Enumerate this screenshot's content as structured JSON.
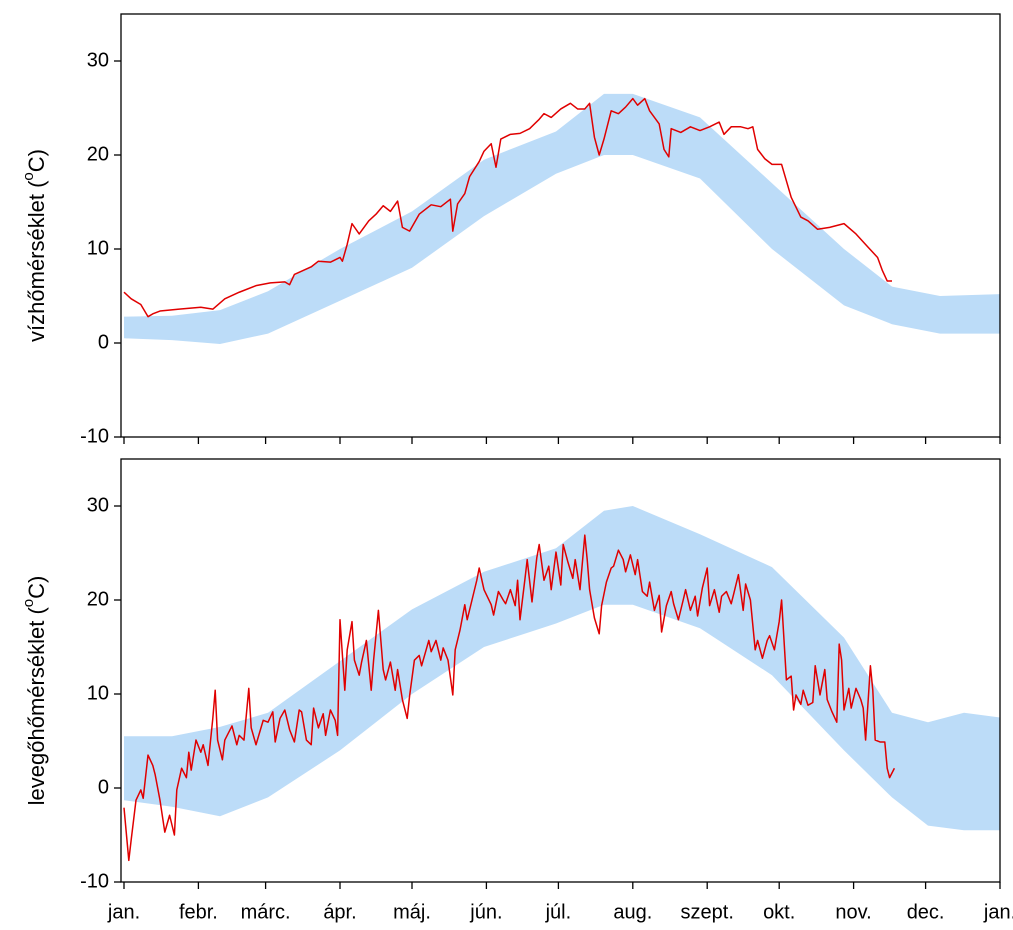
{
  "chart_data": [
    {
      "type": "band-line",
      "ylabel": {
        "text": "vízhőmérséklet (",
        "sup": "o",
        "end": "C)"
      },
      "xlim": [
        0,
        365
      ],
      "ylim": [
        -10,
        35
      ],
      "yticks": [
        -10,
        0,
        10,
        20,
        30
      ],
      "xticks": [
        0,
        31,
        59,
        90,
        120,
        151,
        181,
        212,
        243,
        273,
        304,
        334,
        365
      ],
      "band": {
        "color": "#bcdcf8",
        "x": [
          0,
          20,
          40,
          60,
          90,
          120,
          150,
          180,
          200,
          212,
          240,
          270,
          300,
          320,
          340,
          365
        ],
        "upper": [
          2.8,
          2.9,
          3.5,
          5.5,
          10,
          14,
          19.5,
          22.5,
          26.5,
          26.5,
          24,
          17,
          10,
          6,
          5,
          5.2
        ],
        "lower": [
          0.5,
          0.3,
          -0.1,
          1,
          4.5,
          8,
          13.5,
          18,
          20,
          20,
          17.5,
          10,
          4,
          2,
          1,
          1
        ]
      },
      "line": {
        "color": "#e00000",
        "x": [
          0,
          3,
          7,
          10,
          12,
          15,
          23,
          32,
          37,
          42,
          48,
          55,
          61,
          67,
          69,
          71,
          78,
          81,
          86,
          90,
          91,
          93,
          95,
          98,
          102,
          105,
          108,
          111,
          114,
          116,
          119,
          123,
          128,
          132,
          136,
          137,
          139,
          142,
          144,
          148,
          150,
          153,
          155,
          157,
          161,
          165,
          169,
          173,
          175,
          178,
          182,
          186,
          189,
          192,
          194,
          196,
          198,
          200,
          203,
          206,
          209,
          212,
          214,
          217,
          219,
          223,
          225,
          227,
          228,
          232,
          236,
          240,
          244,
          248,
          250,
          253,
          257,
          260,
          262,
          264,
          267,
          270,
          274,
          278,
          282,
          285,
          289,
          294,
          300,
          305,
          310,
          314,
          316,
          318,
          320
        ],
        "values": [
          5.4,
          4.7,
          4.1,
          2.8,
          3.1,
          3.4,
          3.6,
          3.8,
          3.6,
          4.7,
          5.4,
          6.1,
          6.4,
          6.5,
          6.2,
          7.3,
          8.1,
          8.7,
          8.6,
          9.1,
          8.7,
          10.5,
          12.7,
          11.6,
          13,
          13.7,
          14.6,
          14,
          15.1,
          12.3,
          11.9,
          13.7,
          14.7,
          14.5,
          15.3,
          11.9,
          14.8,
          15.9,
          17.7,
          19.3,
          20.4,
          21.2,
          18.7,
          21.7,
          22.2,
          22.3,
          22.8,
          23.8,
          24.4,
          24,
          24.9,
          25.5,
          24.9,
          24.9,
          25.5,
          21.9,
          20,
          21.7,
          24.7,
          24.4,
          25.1,
          26,
          25.3,
          26,
          24.7,
          23.3,
          20.6,
          19.8,
          22.8,
          22.4,
          23,
          22.6,
          23,
          23.5,
          22.2,
          23,
          23,
          22.8,
          23,
          20.6,
          19.6,
          19,
          19,
          15.5,
          13.4,
          13,
          12.1,
          12.3,
          12.7,
          11.6,
          10.2,
          9.1,
          7.7,
          6.6,
          6.6
        ]
      }
    },
    {
      "type": "band-line",
      "ylabel": {
        "text": "levegőhőmérséklet (",
        "sup": "o",
        "end": "C)"
      },
      "xlim": [
        0,
        365
      ],
      "ylim": [
        -10,
        35
      ],
      "yticks": [
        -10,
        0,
        10,
        20,
        30
      ],
      "xticks": [
        {
          "value": 0,
          "label": "jan."
        },
        {
          "value": 31,
          "label": "febr."
        },
        {
          "value": 59,
          "label": "márc."
        },
        {
          "value": 90,
          "label": "ápr."
        },
        {
          "value": 120,
          "label": "máj."
        },
        {
          "value": 151,
          "label": "jún."
        },
        {
          "value": 181,
          "label": "júl."
        },
        {
          "value": 212,
          "label": "aug."
        },
        {
          "value": 243,
          "label": "szept."
        },
        {
          "value": 273,
          "label": "okt."
        },
        {
          "value": 304,
          "label": "nov."
        },
        {
          "value": 334,
          "label": "dec."
        },
        {
          "value": 365,
          "label": "jan."
        }
      ],
      "band": {
        "color": "#bcdcf8",
        "x": [
          0,
          20,
          40,
          60,
          90,
          120,
          150,
          180,
          200,
          212,
          240,
          270,
          300,
          320,
          335,
          350,
          365
        ],
        "upper": [
          5.5,
          5.5,
          6.5,
          8,
          13.5,
          19,
          23,
          25.5,
          29.5,
          30,
          27,
          23.5,
          16,
          8,
          7,
          8,
          7.5
        ],
        "lower": [
          -1.3,
          -2,
          -3,
          -1,
          4,
          10,
          15,
          17.5,
          19.5,
          19.5,
          17,
          12,
          4,
          -1,
          -4,
          -4.5,
          -4.5
        ]
      },
      "line": {
        "color": "#e00000",
        "x": [
          0,
          2,
          3,
          5,
          7,
          8,
          10,
          12,
          13,
          15,
          17,
          19,
          21,
          22,
          24,
          26,
          27,
          28,
          30,
          32,
          33,
          35,
          37,
          38,
          39,
          41,
          42,
          45,
          47,
          48,
          50,
          52,
          53,
          55,
          58,
          60,
          62,
          63,
          65,
          67,
          69,
          71,
          73,
          74,
          76,
          78,
          79,
          81,
          83,
          84,
          86,
          88,
          89,
          90,
          92,
          93,
          95,
          96,
          98,
          99,
          101,
          103,
          104,
          106,
          108,
          109,
          111,
          113,
          114,
          116,
          118,
          119,
          121,
          123,
          124,
          127,
          128,
          130,
          132,
          133,
          135,
          137,
          138,
          140,
          142,
          143,
          145,
          147,
          148,
          150,
          153,
          154,
          156,
          158,
          159,
          161,
          163,
          164,
          165,
          167,
          168,
          170,
          172,
          173,
          175,
          177,
          178,
          180,
          182,
          183,
          185,
          187,
          188,
          190,
          192,
          193,
          194,
          196,
          198,
          199,
          201,
          203,
          204,
          206,
          208,
          209,
          211,
          213,
          214,
          216,
          218,
          219,
          221,
          223,
          224,
          226,
          228,
          229,
          231,
          233,
          234,
          236,
          238,
          239,
          241,
          243,
          244,
          246,
          248,
          249,
          251,
          253,
          254,
          256,
          258,
          259,
          261,
          263,
          264,
          266,
          268,
          269,
          271,
          273,
          274,
          276,
          278,
          279,
          280,
          282,
          283,
          285,
          287,
          288,
          290,
          292,
          293,
          295,
          297,
          298,
          299,
          300,
          302,
          303,
          305,
          307,
          308,
          309,
          311,
          312,
          313,
          315,
          317,
          318,
          319,
          321
        ],
        "values": [
          -2.1,
          -7.7,
          -5.5,
          -1.3,
          -0.2,
          -1.1,
          3.5,
          2.4,
          1.4,
          -1.3,
          -4.7,
          -2.9,
          -5,
          -0.2,
          2.1,
          1.1,
          3.8,
          1.9,
          5.1,
          3.8,
          4.6,
          2.4,
          7.4,
          10.4,
          5.1,
          3,
          5.1,
          6.6,
          4.6,
          5.6,
          5.1,
          10.6,
          6.4,
          4.6,
          7.2,
          7,
          8.1,
          4.9,
          7.4,
          8.3,
          6.2,
          4.9,
          8.3,
          8.1,
          5.1,
          4.6,
          8.5,
          6.4,
          7.9,
          5.6,
          8.3,
          7.2,
          5.6,
          17.9,
          10.4,
          14.7,
          17.7,
          13.6,
          12,
          13.4,
          15.7,
          10.4,
          13.6,
          18.9,
          12.6,
          11.5,
          13.4,
          10.4,
          12.6,
          9.4,
          7.4,
          9.8,
          13.6,
          14.1,
          13,
          15.7,
          14.5,
          15.7,
          13.6,
          14.9,
          13.6,
          9.9,
          14.7,
          16.8,
          19.5,
          17.9,
          20,
          22.1,
          23.4,
          21.1,
          19.5,
          18.4,
          20.9,
          20,
          19.6,
          21.1,
          19.4,
          22.1,
          17.9,
          22.1,
          24.3,
          19.8,
          24.5,
          25.9,
          22.1,
          23.6,
          21.1,
          25.1,
          21.6,
          25.9,
          24,
          22.3,
          24.3,
          21.1,
          26.9,
          24.3,
          21.1,
          18.1,
          16.4,
          19.4,
          21.9,
          23.4,
          23.6,
          25.3,
          24.3,
          23,
          24.8,
          22.7,
          24.3,
          20.9,
          20.4,
          21.9,
          18.9,
          20.5,
          16.6,
          19.4,
          20.9,
          19.6,
          17.9,
          20,
          21.1,
          18.9,
          20.4,
          18.3,
          21.3,
          23.4,
          19.4,
          21.1,
          18.7,
          20.4,
          20.9,
          19.6,
          20.6,
          22.7,
          18.9,
          21.7,
          20,
          14.7,
          15.7,
          13.8,
          15.7,
          16.2,
          14.7,
          17.7,
          20,
          11.5,
          11.9,
          8.3,
          9.9,
          8.9,
          10.4,
          8.8,
          9.1,
          13,
          9.9,
          12.6,
          9.4,
          8.1,
          7,
          15.3,
          13.6,
          8.3,
          10.6,
          8.5,
          10.6,
          9.4,
          8.5,
          5.1,
          13,
          10.4,
          5.1,
          4.9,
          4.9,
          2.1,
          1.1,
          2.1
        ]
      }
    }
  ]
}
